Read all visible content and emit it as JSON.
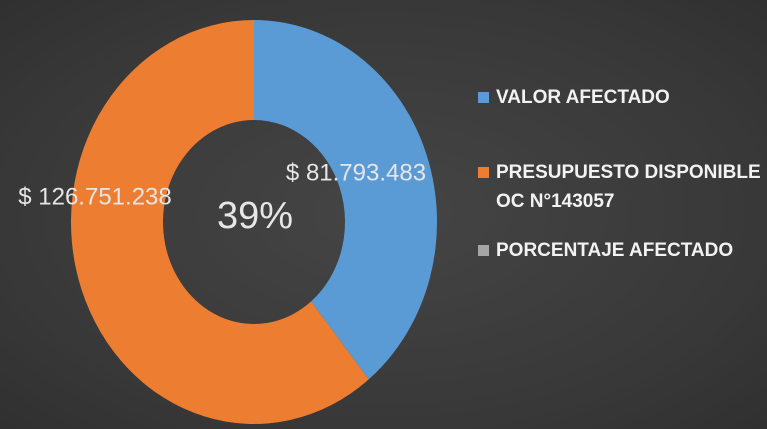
{
  "chart_data": {
    "type": "donut",
    "categories": [
      "VALOR AFECTADO",
      "PRESUPUESTO DISPONIBLE OC N°143057",
      "PORCENTAJE AFECTADO"
    ],
    "values": [
      81793483,
      126751238,
      39
    ],
    "value_labels": [
      "$ 81.793.483",
      "$ 126.751.238",
      "39%"
    ],
    "colors": [
      "#5b9bd5",
      "#ed7d31",
      "#a5a5a5"
    ],
    "legend": "right"
  }
}
